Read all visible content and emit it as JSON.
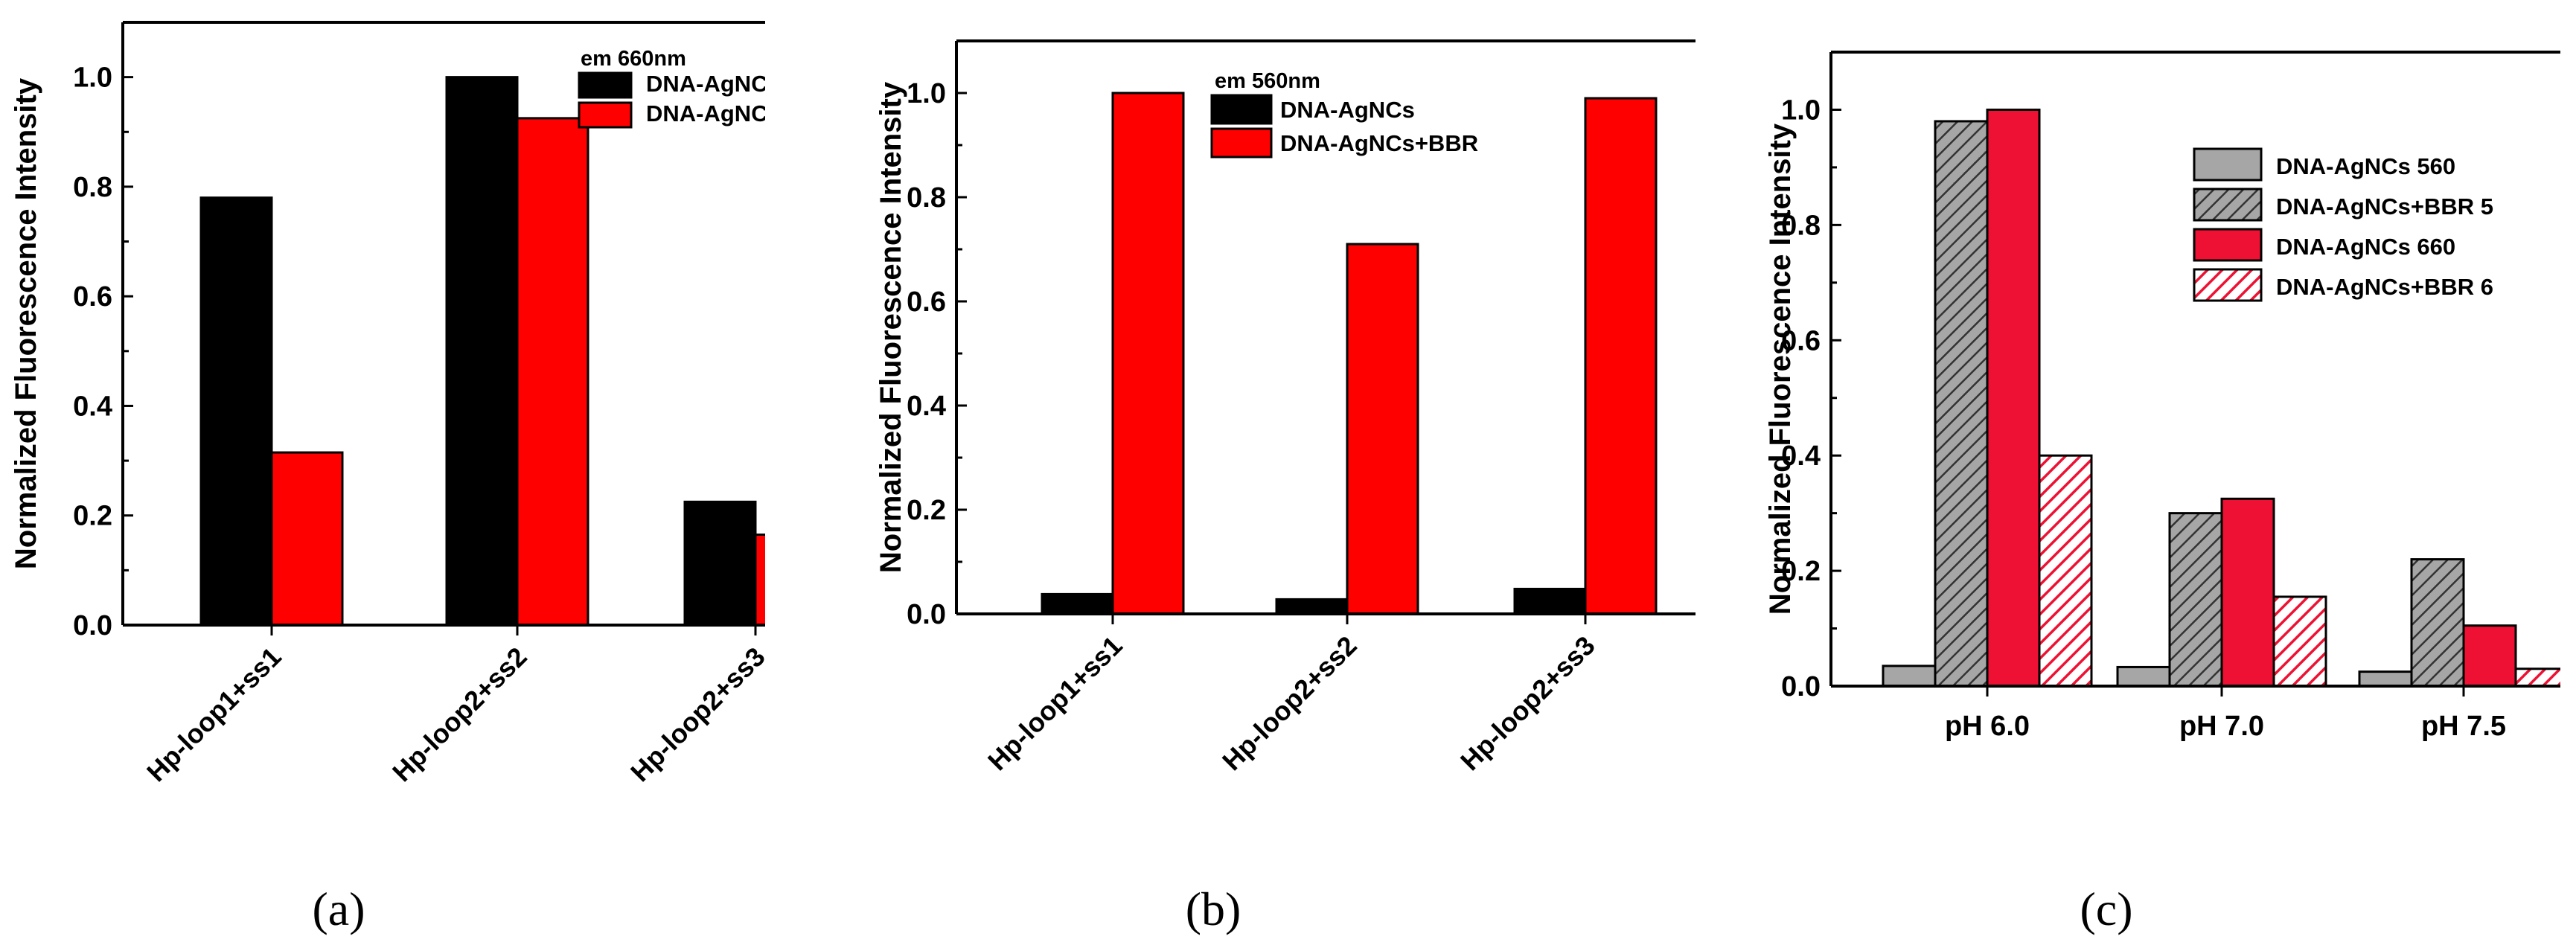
{
  "colors": {
    "black": "#000000",
    "red": "#ff0000",
    "gray": "#a6a6a6",
    "crimson": "#ee1133"
  },
  "chart_data": [
    {
      "type": "bar",
      "panel_label": "(a)",
      "ylabel": "Normalized Fluorescence Intensity",
      "ylim": [
        0,
        1.1
      ],
      "yticks": [
        "0.0",
        "0.2",
        "0.4",
        "0.6",
        "0.8",
        "1.0"
      ],
      "categories": [
        "Hp-loop1+ss1",
        "Hp-loop2+ss2",
        "Hp-loop2+ss3"
      ],
      "legend_title": "em 660nm",
      "legend_placement": "top-right",
      "series": [
        {
          "name": "DNA-AgNC",
          "color": "#000000",
          "pattern": "solid",
          "values": [
            0.78,
            1.0,
            0.225
          ]
        },
        {
          "name": "DNA-AgNC",
          "color": "#ff0000",
          "pattern": "solid",
          "values": [
            0.315,
            0.925,
            0.165
          ]
        }
      ]
    },
    {
      "type": "bar",
      "panel_label": "(b)",
      "ylabel": "Normalized Fluorescence Intensity",
      "ylim": [
        0,
        1.1
      ],
      "yticks": [
        "0.0",
        "0.2",
        "0.4",
        "0.6",
        "0.8",
        "1.0"
      ],
      "categories": [
        "Hp-loop1+ss1",
        "Hp-loop2+ss2",
        "Hp-loop2+ss3"
      ],
      "legend_title": "em 560nm",
      "legend_placement": "top-right",
      "series": [
        {
          "name": "DNA-AgNCs",
          "color": "#000000",
          "pattern": "solid",
          "values": [
            0.038,
            0.028,
            0.048
          ]
        },
        {
          "name": "DNA-AgNCs+BBR",
          "color": "#ff0000",
          "pattern": "solid",
          "values": [
            1.0,
            0.71,
            0.99
          ]
        }
      ]
    },
    {
      "type": "bar",
      "panel_label": "(c)",
      "ylabel": "Normalized Fluorescence Intensity",
      "ylim": [
        0,
        1.1
      ],
      "yticks": [
        "0.0",
        "0.2",
        "0.4",
        "0.6",
        "0.8",
        "1.0"
      ],
      "categories": [
        "pH 6.0",
        "pH 7.0",
        "pH 7.5"
      ],
      "legend_title": "",
      "legend_placement": "top-right",
      "series": [
        {
          "name": "DNA-AgNCs 560",
          "color": "#a6a6a6",
          "pattern": "solid",
          "values": [
            0.035,
            0.033,
            0.025
          ]
        },
        {
          "name": "DNA-AgNCs+BBR 5",
          "color": "#a6a6a6",
          "pattern": "hatch",
          "values": [
            0.98,
            0.3,
            0.22
          ]
        },
        {
          "name": "DNA-AgNCs 660",
          "color": "#ee1133",
          "pattern": "solid",
          "values": [
            1.0,
            0.325,
            0.105
          ]
        },
        {
          "name": "DNA-AgNCs+BBR 6",
          "color": "#ee1133",
          "pattern": "hatch",
          "values": [
            0.4,
            0.155,
            0.03
          ]
        }
      ]
    }
  ]
}
